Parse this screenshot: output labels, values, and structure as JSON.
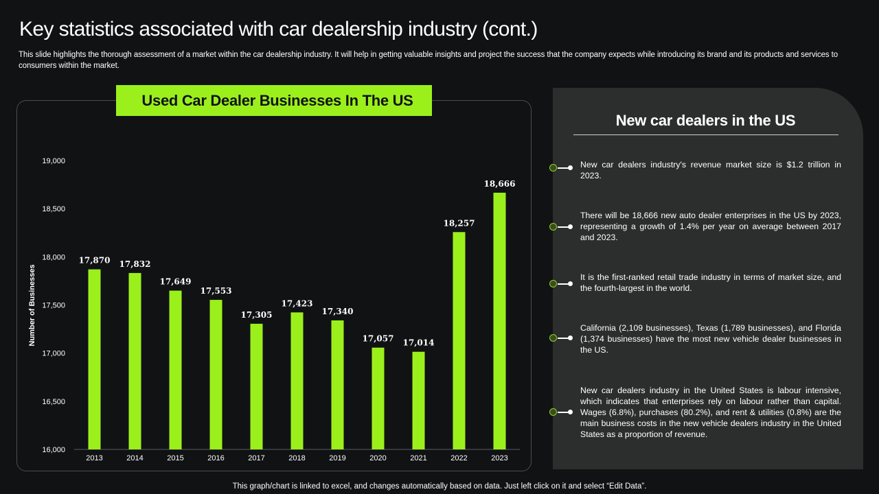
{
  "title": "Key statistics associated with car dealership industry (cont.)",
  "subtitle": "This slide highlights the thorough assessment of a market within the car dealership industry. It will help in getting valuable insights and project the success that the company expects while introducing its brand and its products and services to consumers within the market.",
  "colors": {
    "accent": "#9bf01c",
    "background": "#111214",
    "panel": "#2c2e2d"
  },
  "chart_data": {
    "type": "bar",
    "title": "Used Car Dealer Businesses In The US",
    "xlabel": "",
    "ylabel": "Number of Businesses",
    "categories": [
      "2013",
      "2014",
      "2015",
      "2016",
      "2017",
      "2018",
      "2019",
      "2020",
      "2021",
      "2022",
      "2023"
    ],
    "values": [
      17870,
      17832,
      17649,
      17553,
      17305,
      17423,
      17340,
      17057,
      17014,
      18257,
      18666
    ],
    "value_labels": [
      "17,870",
      "17,832",
      "17,649",
      "17,553",
      "17,305",
      "17,423",
      "17,340",
      "17,057",
      "17,014",
      "18,257",
      "18,666"
    ],
    "ylim": [
      16000,
      19000
    ],
    "yticks": [
      16000,
      16500,
      17000,
      17500,
      18000,
      18500,
      19000
    ],
    "ytick_labels": [
      "16,000",
      "16,500",
      "17,000",
      "17,500",
      "18,000",
      "18,500",
      "19,000"
    ],
    "grid": false,
    "color": "#9bf01c"
  },
  "right_panel": {
    "title": "New car dealers in the US",
    "bullets": [
      "New car dealers industry's revenue  market size is $1.2 trillion in 2023.",
      "There will be 18,666 new auto dealer enterprises in the US by 2023, representing a growth of 1.4% per year on average between 2017 and 2023.",
      "It is the first-ranked retail trade industry in terms of market size, and the fourth-largest  in the world.",
      "California  (2,109 businesses), Texas (1,789 businesses), and Florida (1,374 businesses) have the most new vehicle dealer businesses in the US.",
      "New car dealers industry in the United States is labour intensive, which indicates that enterprises rely on labour rather than capital. Wages (6.8%), purchases (80.2%), and rent & utilities (0.8%) are the main business costs in the new vehicle dealers industry in the United States as a proportion  of revenue."
    ]
  },
  "footer": "This graph/chart is linked to excel,  and changes automatically based on data. Just left click on it and select “Edit Data”."
}
